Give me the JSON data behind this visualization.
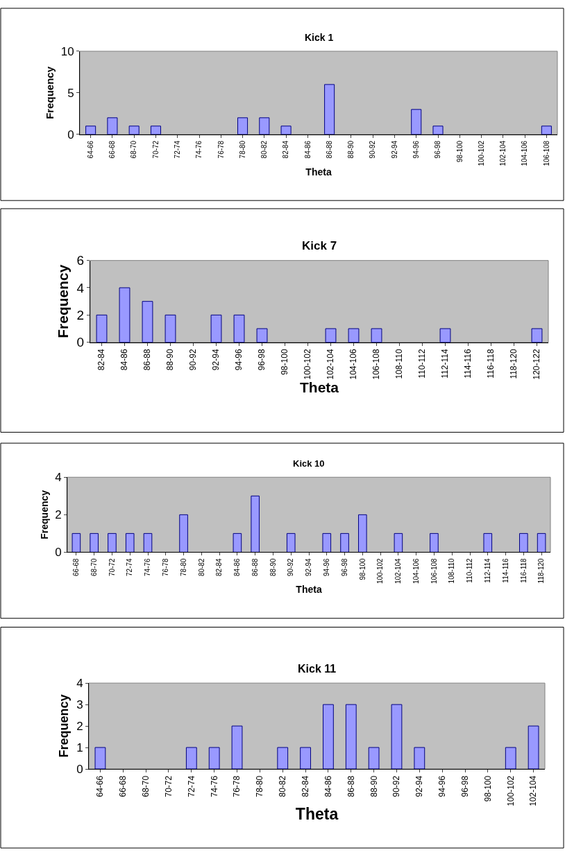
{
  "chart_data": [
    {
      "type": "bar",
      "title": "Kick 1",
      "xlabel": "Theta",
      "ylabel": "Frequency",
      "color": "#9999ff",
      "ylim": [
        0,
        10
      ],
      "yticks": [
        0,
        5,
        10
      ],
      "categories": [
        "64-66",
        "66-68",
        "68-70",
        "70-72",
        "72-74",
        "74-76",
        "76-78",
        "78-80",
        "80-82",
        "82-84",
        "84-86",
        "86-88",
        "88-90",
        "90-92",
        "92-94",
        "94-96",
        "96-98",
        "98-100",
        "100-102",
        "102-104",
        "104-106",
        "106-108"
      ],
      "values": [
        1,
        2,
        1,
        1,
        0,
        0,
        0,
        2,
        2,
        1,
        0,
        6,
        0,
        0,
        0,
        3,
        1,
        0,
        0,
        0,
        0,
        1
      ]
    },
    {
      "type": "bar",
      "title": "Kick 7",
      "xlabel": "Theta",
      "ylabel": "Frequency",
      "color": "#9999ff",
      "ylim": [
        0,
        6
      ],
      "yticks": [
        0,
        2,
        4,
        6
      ],
      "categories": [
        "82-84",
        "84-86",
        "86-88",
        "88-90",
        "90-92",
        "92-94",
        "94-96",
        "96-98",
        "98-100",
        "100-102",
        "102-104",
        "104-106",
        "106-108",
        "108-110",
        "110-112",
        "112-114",
        "114-116",
        "116-118",
        "118-120",
        "120-122"
      ],
      "values": [
        2,
        4,
        3,
        2,
        0,
        2,
        2,
        1,
        0,
        0,
        1,
        1,
        1,
        0,
        0,
        1,
        0,
        0,
        0,
        1
      ]
    },
    {
      "type": "bar",
      "title": "Kick 10",
      "xlabel": "Theta",
      "ylabel": "Frequency",
      "color": "#9999ff",
      "ylim": [
        0,
        4
      ],
      "yticks": [
        0,
        2,
        4
      ],
      "categories": [
        "66-68",
        "68-70",
        "70-72",
        "72-74",
        "74-76",
        "76-78",
        "78-80",
        "80-82",
        "82-84",
        "84-86",
        "86-88",
        "88-90",
        "90-92",
        "92-94",
        "94-96",
        "96-98",
        "98-100",
        "100-102",
        "102-104",
        "104-106",
        "106-108",
        "108-110",
        "110-112",
        "112-114",
        "114-116",
        "116-118",
        "118-120"
      ],
      "values": [
        1,
        1,
        1,
        1,
        1,
        0,
        2,
        0,
        0,
        1,
        3,
        0,
        1,
        0,
        1,
        1,
        2,
        0,
        1,
        0,
        1,
        0,
        0,
        1,
        0,
        1,
        1
      ]
    },
    {
      "type": "bar",
      "title": "Kick 11",
      "xlabel": "Theta",
      "ylabel": "Frequency",
      "color": "#9999ff",
      "ylim": [
        0,
        4
      ],
      "yticks": [
        0,
        1,
        2,
        3,
        4
      ],
      "categories": [
        "64-66",
        "66-68",
        "68-70",
        "70-72",
        "72-74",
        "74-76",
        "76-78",
        "78-80",
        "80-82",
        "82-84",
        "84-86",
        "86-88",
        "88-90",
        "90-92",
        "92-94",
        "94-96",
        "96-98",
        "98-100",
        "100-102",
        "102-104"
      ],
      "values": [
        1,
        0,
        0,
        0,
        1,
        1,
        2,
        0,
        1,
        1,
        3,
        3,
        1,
        3,
        1,
        0,
        0,
        0,
        1,
        2
      ]
    }
  ]
}
